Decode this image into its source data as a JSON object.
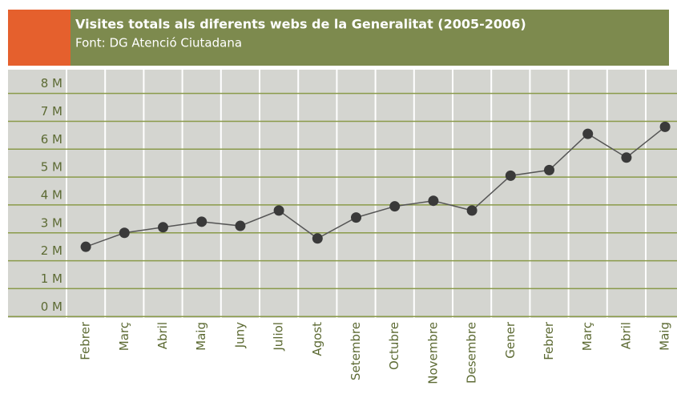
{
  "chart_data": {
    "type": "line",
    "title": "Visites totals als diferents webs de la Generalitat (2005-2006)",
    "subtitle": "Font: DG Atenció Ciutadana",
    "categories": [
      "Febrer",
      "Març",
      "Abril",
      "Maig",
      "Juny",
      "Juliol",
      "Agost",
      "Setembre",
      "Octubre",
      "Novembre",
      "Desembre",
      "Gener",
      "Febrer",
      "Març",
      "Abril",
      "Maig"
    ],
    "values": [
      2.5,
      3.0,
      3.2,
      3.4,
      3.25,
      3.8,
      2.8,
      3.55,
      3.95,
      4.15,
      3.8,
      5.05,
      5.25,
      6.55,
      5.7,
      6.8
    ],
    "color": "#3a3a3a",
    "ylim": [
      -0.05,
      8.85
    ],
    "yticks": [
      {
        "value": 0,
        "label": "0 M"
      },
      {
        "value": 1,
        "label": "1 M"
      },
      {
        "value": 2,
        "label": "2 M"
      },
      {
        "value": 3,
        "label": "3 M"
      },
      {
        "value": 4,
        "label": "4 M"
      },
      {
        "value": 5,
        "label": "5 M"
      },
      {
        "value": 6,
        "label": "6 M"
      },
      {
        "value": 7,
        "label": "7 M"
      },
      {
        "value": 8,
        "label": "8 M"
      }
    ],
    "grid": true
  }
}
